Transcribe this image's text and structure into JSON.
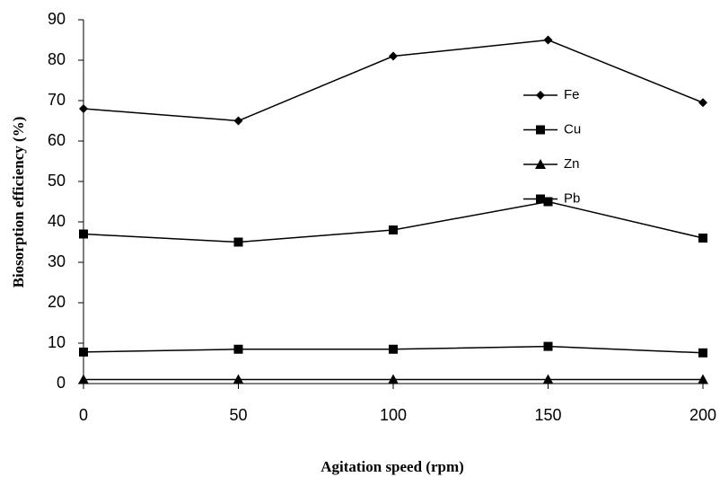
{
  "chart_data": {
    "type": "line",
    "x_label": "Agitation speed (rpm)",
    "y_label": "Biosorption efficiency  (%)",
    "x": [
      0,
      50,
      100,
      150,
      200
    ],
    "series": [
      {
        "name": "Fe",
        "color": "#000000",
        "marker": "diamond",
        "values": [
          68,
          65,
          81,
          85,
          69.5
        ]
      },
      {
        "name": "Cu",
        "color": "#000000",
        "marker": "square",
        "values": [
          37,
          35,
          38,
          45,
          36
        ]
      },
      {
        "name": "Zn",
        "color": "#000000",
        "marker": "triangle",
        "values": [
          1,
          1,
          1,
          1,
          1
        ]
      },
      {
        "name": "Pb",
        "color": "#000000",
        "marker": "square",
        "values": [
          7.8,
          8.5,
          8.5,
          9.2,
          7.6
        ]
      }
    ],
    "xlim": [
      0,
      200
    ],
    "xticks": [
      0,
      50,
      100,
      150,
      200
    ],
    "ylim": [
      0,
      90
    ],
    "yticks": [
      0,
      10,
      20,
      30,
      40,
      50,
      60,
      70,
      80,
      90
    ],
    "grid": false
  }
}
